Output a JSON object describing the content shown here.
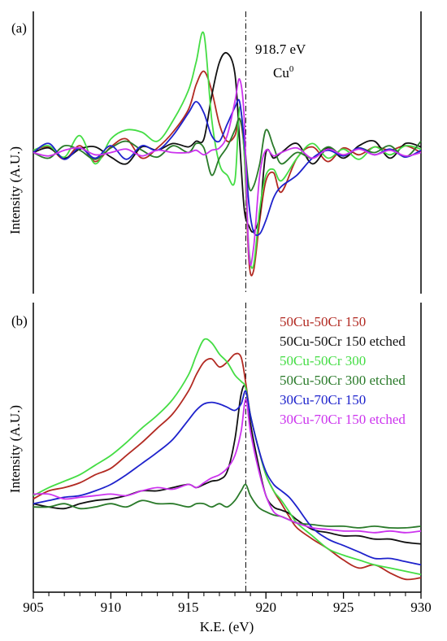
{
  "chart_data": [
    {
      "type": "line",
      "panel_label": "(a)",
      "ylabel": "Intensity (A.U.)",
      "xlim": [
        905,
        930
      ],
      "annotation": {
        "energy": "918.7 eV",
        "species": "Cu",
        "superscript": "0"
      },
      "reference_line_x": 918.7,
      "series": [
        {
          "name": "50Cu-50Cr 150",
          "color": "#b22a22",
          "x": [
            905,
            906,
            907,
            908,
            909,
            910,
            911,
            912,
            913,
            914,
            915,
            915.5,
            916,
            916.5,
            917,
            917.5,
            918,
            918.3,
            918.6,
            918.9,
            919.2,
            919.6,
            920,
            920.5,
            921,
            922,
            923,
            924,
            925,
            926,
            927,
            928,
            929,
            930
          ],
          "y": [
            0.02,
            0.05,
            -0.06,
            0.06,
            -0.08,
            0.05,
            0.12,
            -0.05,
            0.04,
            0.18,
            0.38,
            0.6,
            0.72,
            0.55,
            0.25,
            0.1,
            0.15,
            0.3,
            0.0,
            -0.95,
            -1.05,
            -0.6,
            -0.25,
            -0.18,
            -0.35,
            -0.05,
            0.05,
            -0.08,
            0.04,
            -0.02,
            0.05,
            0.02,
            0.06,
            0.0
          ]
        },
        {
          "name": "50Cu-50Cr 150 etched",
          "color": "#111111",
          "x": [
            905,
            906,
            907,
            908,
            909,
            910,
            911,
            912,
            913,
            914,
            915,
            915.5,
            916,
            916.5,
            917,
            917.5,
            918,
            918.3,
            918.6,
            918.9,
            919.2,
            919.6,
            920,
            920.5,
            921,
            922,
            923,
            924,
            925,
            926,
            927,
            928,
            929,
            930
          ],
          "y": [
            0.0,
            0.04,
            -0.05,
            0.03,
            0.05,
            -0.04,
            -0.1,
            0.05,
            0.02,
            0.08,
            0.05,
            0.1,
            0.12,
            0.5,
            0.8,
            0.88,
            0.7,
            0.1,
            -0.5,
            -0.65,
            -0.7,
            -0.55,
            0.0,
            -0.05,
            0.0,
            0.08,
            -0.1,
            0.04,
            -0.05,
            0.06,
            0.1,
            -0.05,
            0.08,
            0.05
          ]
        },
        {
          "name": "50Cu-50Cr 300",
          "color": "#44dd44",
          "x": [
            905,
            906,
            907,
            908,
            909,
            910,
            911,
            912,
            913,
            914,
            915,
            915.5,
            916,
            916.5,
            917,
            917.5,
            918,
            918.3,
            918.6,
            918.9,
            919.2,
            919.6,
            920,
            920.5,
            921,
            922,
            923,
            924,
            925,
            926,
            927,
            928,
            929,
            930
          ],
          "y": [
            0.02,
            0.06,
            -0.04,
            0.15,
            -0.1,
            0.12,
            0.2,
            0.18,
            0.1,
            0.28,
            0.55,
            0.8,
            1.05,
            0.3,
            -0.1,
            -0.2,
            -0.25,
            0.4,
            0.0,
            -0.85,
            -1.0,
            -0.5,
            -0.2,
            -0.15,
            -0.25,
            -0.05,
            0.08,
            -0.05,
            0.03,
            -0.06,
            0.05,
            -0.02,
            0.06,
            0.03
          ]
        },
        {
          "name": "50Cu-50Cr 300 etched",
          "color": "#2a7a2a",
          "x": [
            905,
            906,
            907,
            908,
            909,
            910,
            911,
            912,
            913,
            914,
            915,
            915.5,
            916,
            916.5,
            917,
            917.5,
            918,
            918.3,
            918.6,
            918.9,
            919.2,
            919.6,
            920,
            920.5,
            921,
            922,
            923,
            924,
            925,
            926,
            927,
            928,
            929,
            930
          ],
          "y": [
            0.0,
            -0.05,
            0.06,
            0.02,
            -0.06,
            0.04,
            0.1,
            0.02,
            -0.04,
            0.06,
            0.0,
            0.08,
            0.04,
            -0.2,
            -0.05,
            0.05,
            0.2,
            0.3,
            0.1,
            -0.3,
            -0.3,
            -0.1,
            0.2,
            0.05,
            -0.1,
            0.0,
            -0.05,
            0.05,
            -0.03,
            0.04,
            0.0,
            0.06,
            -0.04,
            0.1
          ]
        },
        {
          "name": "30Cu-70Cr 150",
          "color": "#1e22cc",
          "x": [
            905,
            906,
            907,
            908,
            909,
            910,
            911,
            912,
            913,
            914,
            915,
            915.5,
            916,
            916.5,
            917,
            917.5,
            918,
            918.3,
            918.6,
            918.9,
            919.2,
            919.6,
            920,
            920.5,
            921,
            922,
            923,
            924,
            925,
            926,
            927,
            928,
            929,
            930
          ],
          "y": [
            0.0,
            0.08,
            -0.06,
            0.04,
            -0.05,
            0.06,
            -0.06,
            0.06,
            0.02,
            0.15,
            0.35,
            0.45,
            0.35,
            0.15,
            0.1,
            0.25,
            0.4,
            0.45,
            0.1,
            -0.45,
            -0.7,
            -0.72,
            -0.6,
            -0.4,
            -0.3,
            -0.2,
            -0.05,
            0.02,
            -0.03,
            0.04,
            -0.02,
            0.03,
            -0.04,
            0.02
          ]
        },
        {
          "name": "30Cu-70Cr 150 etched",
          "color": "#cc33ee",
          "x": [
            905,
            906,
            907,
            908,
            909,
            910,
            911,
            912,
            913,
            914,
            915,
            915.5,
            916,
            916.5,
            917,
            917.5,
            918,
            918.3,
            918.6,
            918.9,
            919.2,
            919.6,
            920,
            920.5,
            921,
            922,
            923,
            924,
            925,
            926,
            927,
            928,
            929,
            930
          ],
          "y": [
            0.0,
            -0.03,
            0.02,
            0.04,
            -0.02,
            0.0,
            0.03,
            -0.03,
            0.02,
            0.0,
            0.0,
            0.02,
            -0.02,
            0.02,
            0.04,
            0.15,
            0.45,
            0.65,
            0.3,
            -0.9,
            -0.85,
            -0.2,
            0.02,
            -0.03,
            0.0,
            0.04,
            -0.05,
            0.03,
            -0.02,
            0.03,
            -0.02,
            0.02,
            -0.03,
            0.0
          ]
        }
      ]
    },
    {
      "type": "line",
      "panel_label": "(b)",
      "xlabel": "K.E. (eV)",
      "ylabel": "Intensity (A.U.)",
      "xlim": [
        905,
        930
      ],
      "xticks": [
        905,
        910,
        915,
        920,
        925,
        930
      ],
      "reference_line_x": 918.7,
      "legend_position": "top-right",
      "series": [
        {
          "name": "50Cu-50Cr 150",
          "color": "#b22a22",
          "x": [
            905,
            906,
            907,
            908,
            909,
            910,
            911,
            912,
            913,
            914,
            915,
            915.5,
            916,
            916.5,
            917,
            917.5,
            918,
            918.4,
            918.7,
            919,
            919.5,
            920,
            920.5,
            921,
            921.5,
            922,
            923,
            924,
            925,
            926,
            927,
            928,
            929,
            930
          ],
          "y": [
            0.03,
            0.08,
            0.1,
            0.13,
            0.18,
            0.22,
            0.3,
            0.38,
            0.47,
            0.56,
            0.7,
            0.8,
            0.88,
            0.9,
            0.85,
            0.88,
            0.93,
            0.91,
            0.75,
            0.55,
            0.35,
            0.18,
            0.08,
            0.0,
            -0.08,
            -0.15,
            -0.22,
            -0.28,
            -0.35,
            -0.4,
            -0.38,
            -0.43,
            -0.47,
            -0.46
          ]
        },
        {
          "name": "50Cu-50Cr 150 etched",
          "color": "#111111",
          "x": [
            905,
            906,
            907,
            908,
            909,
            910,
            911,
            912,
            913,
            914,
            915,
            915.5,
            916,
            916.5,
            917,
            917.5,
            918,
            918.4,
            918.7,
            919,
            919.5,
            920,
            920.5,
            921,
            921.5,
            922,
            923,
            924,
            925,
            926,
            927,
            928,
            929,
            930
          ],
          "y": [
            0.0,
            -0.02,
            -0.03,
            0.0,
            0.02,
            0.03,
            0.05,
            0.08,
            0.08,
            0.1,
            0.12,
            0.1,
            0.12,
            0.14,
            0.15,
            0.2,
            0.4,
            0.68,
            0.72,
            0.5,
            0.25,
            0.05,
            -0.02,
            -0.04,
            -0.06,
            -0.1,
            -0.16,
            -0.18,
            -0.2,
            -0.2,
            -0.22,
            -0.22,
            -0.24,
            -0.25
          ]
        },
        {
          "name": "50Cu-50Cr 300",
          "color": "#44dd44",
          "x": [
            905,
            906,
            907,
            908,
            909,
            910,
            911,
            912,
            913,
            914,
            915,
            915.5,
            916,
            916.5,
            917,
            917.5,
            918,
            918.4,
            918.7,
            919,
            919.5,
            920,
            920.5,
            921,
            921.5,
            922,
            923,
            924,
            925,
            926,
            927,
            928,
            929,
            930
          ],
          "y": [
            0.05,
            0.1,
            0.14,
            0.18,
            0.24,
            0.3,
            0.38,
            0.47,
            0.55,
            0.65,
            0.8,
            0.92,
            1.02,
            1.0,
            0.93,
            0.88,
            0.8,
            0.76,
            0.72,
            0.55,
            0.35,
            0.18,
            0.08,
            0.02,
            -0.05,
            -0.12,
            -0.2,
            -0.28,
            -0.32,
            -0.35,
            -0.38,
            -0.4,
            -0.42,
            -0.44
          ]
        },
        {
          "name": "50Cu-50Cr 300 etched",
          "color": "#2a7a2a",
          "x": [
            905,
            906,
            907,
            908,
            909,
            910,
            911,
            912,
            913,
            914,
            915,
            915.5,
            916,
            916.5,
            917,
            917.5,
            918,
            918.4,
            918.7,
            919,
            919.5,
            920,
            920.5,
            921,
            921.5,
            922,
            923,
            924,
            925,
            926,
            927,
            928,
            929,
            930
          ],
          "y": [
            -0.02,
            -0.02,
            0.0,
            -0.03,
            -0.02,
            0.0,
            -0.02,
            0.02,
            0.0,
            0.0,
            -0.02,
            0.0,
            0.0,
            -0.02,
            0.0,
            -0.02,
            0.02,
            0.08,
            0.12,
            0.05,
            -0.02,
            -0.05,
            -0.07,
            -0.08,
            -0.1,
            -0.12,
            -0.13,
            -0.14,
            -0.14,
            -0.15,
            -0.14,
            -0.15,
            -0.15,
            -0.14
          ]
        },
        {
          "name": "30Cu-70Cr 150",
          "color": "#1e22cc",
          "x": [
            905,
            906,
            907,
            908,
            909,
            910,
            911,
            912,
            913,
            914,
            915,
            915.5,
            916,
            916.5,
            917,
            917.5,
            918,
            918.4,
            918.7,
            919,
            919.5,
            920,
            920.5,
            921,
            921.5,
            922,
            923,
            924,
            925,
            926,
            927,
            928,
            929,
            930
          ],
          "y": [
            0.0,
            0.02,
            0.04,
            0.05,
            0.08,
            0.12,
            0.18,
            0.25,
            0.32,
            0.4,
            0.52,
            0.58,
            0.62,
            0.63,
            0.62,
            0.6,
            0.58,
            0.62,
            0.7,
            0.55,
            0.35,
            0.2,
            0.12,
            0.08,
            0.04,
            -0.02,
            -0.15,
            -0.22,
            -0.26,
            -0.3,
            -0.34,
            -0.34,
            -0.36,
            -0.38
          ]
        },
        {
          "name": "30Cu-70Cr 150 etched",
          "color": "#cc33ee",
          "x": [
            905,
            906,
            907,
            908,
            909,
            910,
            911,
            912,
            913,
            914,
            915,
            915.5,
            916,
            916.5,
            917,
            917.5,
            918,
            918.4,
            918.7,
            919,
            919.5,
            920,
            920.5,
            921,
            921.5,
            922,
            923,
            924,
            925,
            926,
            927,
            928,
            929,
            930
          ],
          "y": [
            0.06,
            0.06,
            0.03,
            0.04,
            0.05,
            0.06,
            0.05,
            0.08,
            0.1,
            0.09,
            0.12,
            0.1,
            0.13,
            0.16,
            0.18,
            0.22,
            0.3,
            0.45,
            0.65,
            0.45,
            0.22,
            0.05,
            -0.05,
            -0.08,
            -0.1,
            -0.12,
            -0.15,
            -0.16,
            -0.17,
            -0.17,
            -0.18,
            -0.17,
            -0.18,
            -0.17
          ]
        }
      ]
    }
  ]
}
